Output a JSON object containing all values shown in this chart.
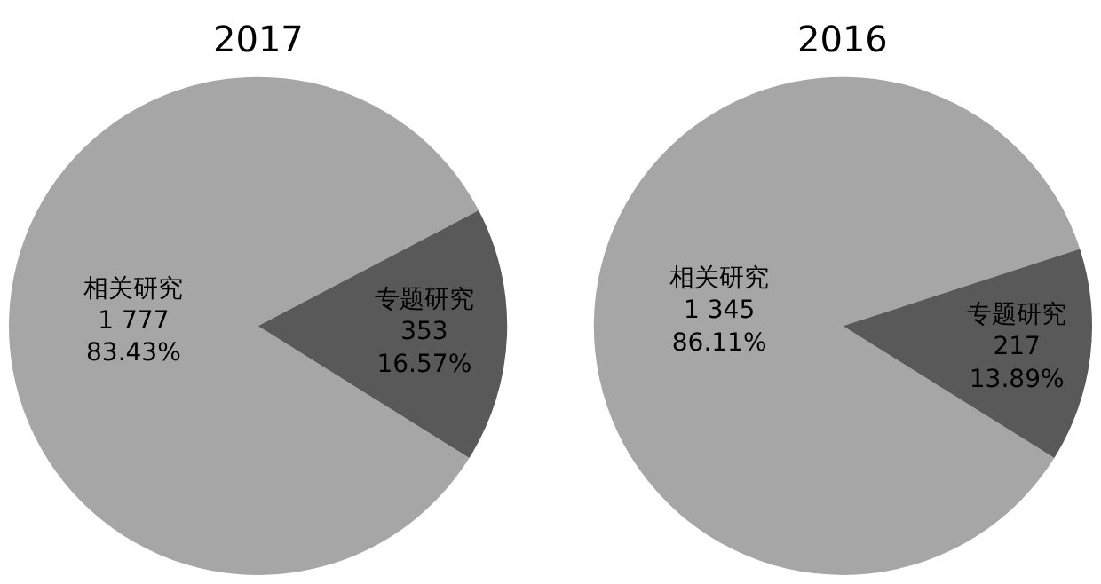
{
  "chart_data": [
    {
      "type": "pie",
      "title": "2017",
      "categories": [
        "相关研究",
        "专题研究"
      ],
      "values": [
        1777,
        353
      ],
      "colors": [
        "#a6a6a6",
        "#595959"
      ],
      "value_labels": [
        "1 777\n83.43%",
        "353\n16.57%"
      ],
      "legend": false
    },
    {
      "type": "pie",
      "title": "2016",
      "categories": [
        "相关研究",
        "专题研究"
      ],
      "values": [
        1345,
        217
      ],
      "colors": [
        "#a6a6a6",
        "#595959"
      ],
      "value_labels": [
        "1 345\n86.11%",
        "217\n13.89%"
      ],
      "legend": false
    }
  ]
}
